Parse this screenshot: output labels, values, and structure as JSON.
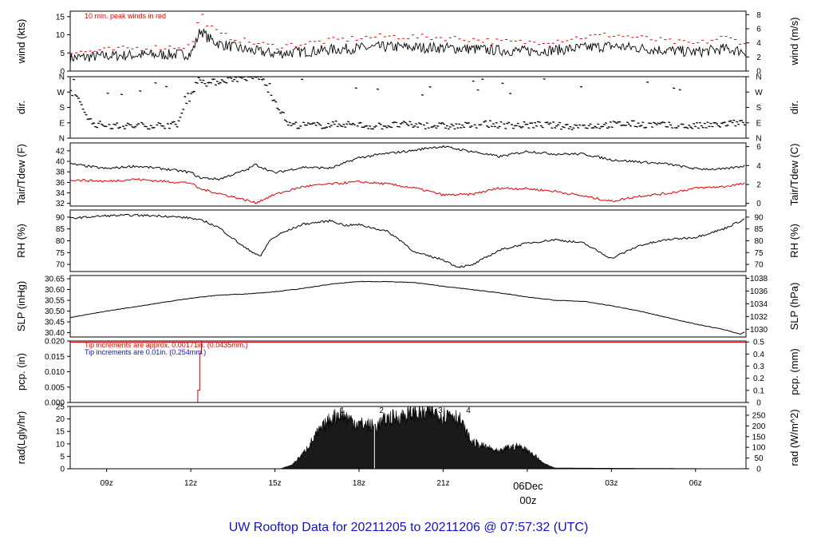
{
  "caption": "UW Rooftop Data for 20211205  to  20211206 @ 07:57:32  (UTC)",
  "colors": {
    "red": "#e00000",
    "blue": "#1010d0",
    "black": "#000000",
    "purple": "#7a1fa2"
  },
  "chart_data": [
    {
      "type": "line",
      "id": "wind",
      "ylabel_left": "wind (kts)",
      "ylabel_right": "wind (m/s)",
      "left_ticks": [
        "0",
        "5",
        "10",
        "15"
      ],
      "right_ticks": [
        "0",
        "2",
        "4",
        "6",
        "8"
      ],
      "ylim": [
        0,
        16.5
      ],
      "annotation": "10 min. peak winds in red",
      "x": [
        7.7,
        9,
        10,
        11,
        12,
        12.1,
        12.2,
        12.35,
        12.6,
        13,
        14,
        15,
        16,
        17,
        18,
        19,
        20,
        21,
        22,
        23,
        24,
        25,
        26,
        27,
        28,
        29,
        30,
        31,
        31.8
      ],
      "series": [
        {
          "values": [
            3.6,
            4.2,
            4.4,
            4.5,
            4.7,
            6.4,
            8.4,
            11.4,
            9.2,
            7.5,
            5.8,
            4.8,
            5.3,
            5.9,
            6.3,
            6.7,
            6.5,
            6.4,
            6.1,
            5.7,
            5.5,
            5.8,
            6.4,
            6.9,
            6.3,
            5.7,
            5.2,
            6.1,
            5.4
          ]
        },
        {
          "values": [
            5.0,
            5.8,
            6.3,
            6.5,
            6.9,
            8.7,
            11.6,
            16.0,
            13.0,
            10.2,
            8.1,
            6.8,
            7.5,
            8.4,
            9.1,
            9.6,
            9.4,
            9.2,
            8.8,
            8.1,
            7.9,
            8.4,
            9.4,
            10.0,
            9.2,
            8.2,
            7.4,
            9.3,
            7.8
          ]
        }
      ]
    },
    {
      "type": "scatter",
      "id": "dir",
      "ylabel_left": "dir.",
      "ylabel_right": "dir.",
      "left_ticks": [
        "N",
        "E",
        "S",
        "W",
        "N"
      ],
      "right_ticks": [
        "N",
        "E",
        "S",
        "W",
        "N"
      ],
      "ylim": [
        0,
        360
      ],
      "x": [
        7.8,
        8.5,
        9.5,
        10.5,
        11.5,
        12.3,
        12.6,
        13.0,
        13.5,
        14.0,
        14.5,
        15.5,
        16.5,
        17.5,
        18.5,
        19.5,
        20.5,
        21.5,
        22.5,
        23.5,
        24.5,
        25.5,
        26.5,
        27.5,
        28.5,
        29.5,
        30.5,
        31.5
      ],
      "values": [
        270,
        85,
        70,
        75,
        80,
        355,
        320,
        335,
        350,
        355,
        360,
        80,
        75,
        85,
        70,
        80,
        75,
        70,
        85,
        75,
        80,
        70,
        75,
        85,
        80,
        70,
        75,
        90
      ]
    },
    {
      "type": "line",
      "id": "temp",
      "ylabel_left": "Tair/Tdew (F)",
      "ylabel_right": "Tair/Tdew (C)",
      "left_ticks": [
        "32",
        "34",
        "36",
        "38",
        "40",
        "42"
      ],
      "right_ticks": [
        "0",
        "2",
        "4",
        "6"
      ],
      "ylim": [
        31.5,
        43.5
      ],
      "x": [
        7.7,
        9,
        10,
        11,
        12,
        12.3,
        13,
        14,
        14.3,
        15,
        16,
        17,
        18,
        19,
        20,
        20.5,
        21,
        22,
        23,
        24,
        25,
        26,
        27,
        28,
        29,
        30,
        31,
        31.8
      ],
      "series": [
        {
          "values": [
            39.5,
            38.6,
            39.1,
            38.6,
            37.9,
            36.9,
            36.6,
            38.4,
            39.4,
            37.8,
            38.9,
            38.7,
            40.7,
            41.5,
            42.1,
            42.6,
            42.8,
            41.9,
            40.9,
            41.9,
            41.4,
            41.4,
            40.3,
            39.9,
            39.5,
            38.6,
            38.5,
            39.2
          ]
        },
        {
          "values": [
            36.5,
            36.2,
            36.6,
            36.2,
            35.9,
            34.8,
            33.9,
            32.6,
            32.1,
            33.7,
            35.2,
            35.7,
            36.1,
            35.7,
            34.9,
            34.3,
            33.6,
            33.7,
            34.9,
            34.8,
            34.3,
            33.4,
            32.4,
            33.4,
            33.9,
            34.9,
            35.2,
            35.8
          ]
        }
      ]
    },
    {
      "type": "line",
      "id": "rh",
      "ylabel_left": "RH (%)",
      "ylabel_right": "RH (%)",
      "left_ticks": [
        "70",
        "75",
        "80",
        "85",
        "90"
      ],
      "right_ticks": [
        "70",
        "75",
        "80",
        "85",
        "90"
      ],
      "ylim": [
        67,
        93
      ],
      "x": [
        7.7,
        9,
        10,
        11,
        12,
        12.5,
        13,
        13.5,
        14,
        14.5,
        14.8,
        15.2,
        16,
        17,
        17.5,
        18,
        19,
        19.5,
        20,
        21,
        21.5,
        22,
        23,
        24,
        25,
        26,
        27,
        28,
        29,
        30,
        31,
        31.8
      ],
      "values": [
        89.5,
        90.6,
        90.8,
        90.5,
        89.6,
        88.2,
        85.6,
        81.0,
        76.5,
        73.5,
        80.0,
        83.0,
        87.0,
        88.5,
        86.5,
        86.8,
        84.0,
        80.0,
        75.0,
        72.0,
        69.0,
        69.5,
        76.0,
        79.0,
        80.5,
        79.0,
        72.5,
        78.0,
        80.5,
        81.5,
        85.0,
        89.5
      ]
    },
    {
      "type": "line",
      "id": "slp",
      "ylabel_left": "SLP (inHg)",
      "ylabel_right": "SLP (hPa)",
      "left_ticks": [
        "30.40",
        "30.45",
        "30.50",
        "30.55",
        "30.60",
        "30.65"
      ],
      "right_ticks": [
        "1030",
        "1032",
        "1034",
        "1036",
        "1038"
      ],
      "ylim": [
        30.38,
        30.665
      ],
      "x": [
        7.7,
        9,
        10,
        11,
        12,
        13,
        14,
        15,
        16,
        17,
        18,
        19,
        20,
        21,
        22,
        23,
        24,
        25,
        26,
        27,
        28,
        29,
        30,
        31,
        31.6,
        31.8
      ],
      "values": [
        30.47,
        30.5,
        30.52,
        30.54,
        30.56,
        30.574,
        30.58,
        30.59,
        30.605,
        30.625,
        30.637,
        30.637,
        30.632,
        30.615,
        30.6,
        30.585,
        30.565,
        30.55,
        30.545,
        30.525,
        30.5,
        30.47,
        30.44,
        30.415,
        30.393,
        30.405
      ]
    },
    {
      "type": "line",
      "id": "pcp",
      "ylabel_left": "pcp. (in)",
      "ylabel_right": "pcp. (mm)",
      "left_ticks": [
        "0.000",
        "0.005",
        "0.010",
        "0.015",
        "0.020"
      ],
      "right_ticks": [
        "0",
        "0.1",
        "0.2",
        "0.3",
        "0.4",
        "0.5"
      ],
      "ylim": [
        0,
        0.02
      ],
      "notes": [
        "Tip increments are approx. 0.00171in. (0.0435mm.)",
        "Tip increments are 0.01in. (0.254mm.)"
      ],
      "x": [
        7.7,
        12.25,
        12.25,
        12.32,
        12.32,
        12.38,
        12.38,
        31.8
      ],
      "values": [
        0,
        0,
        0.004,
        0.004,
        0.016,
        0.016,
        0.02,
        0.02
      ]
    },
    {
      "type": "area",
      "id": "rad",
      "ylabel_left": "rad(Lgly/hr)",
      "ylabel_right": "rad (W/m^2)",
      "left_ticks": [
        "0",
        "5",
        "10",
        "15",
        "20",
        "25"
      ],
      "right_ticks": [
        "0",
        "50",
        "100",
        "150",
        "200",
        "250"
      ],
      "ylim": [
        0,
        25
      ],
      "markers": [
        "1",
        "2",
        "3",
        "4"
      ],
      "marker_x": [
        17.4,
        18.8,
        20.9,
        21.9
      ],
      "x": [
        7.7,
        15.2,
        15.6,
        16.0,
        16.5,
        17.0,
        17.3,
        17.5,
        17.8,
        18.0,
        18.3,
        18.6,
        19.0,
        19.5,
        20.0,
        20.3,
        20.7,
        21.0,
        21.3,
        21.6,
        21.8,
        22.0,
        22.3,
        22.7,
        23.0,
        23.3,
        23.7,
        24.0,
        24.3,
        24.6,
        25.0,
        31.8
      ],
      "values": [
        0,
        0,
        1.5,
        6,
        14,
        20,
        22,
        21,
        19,
        18,
        17.5,
        17,
        20,
        21,
        22.5,
        22,
        22.8,
        21.5,
        22.5,
        19.5,
        15,
        11,
        9.5,
        8,
        6.5,
        8.5,
        9,
        7.5,
        5,
        2,
        0.3,
        0
      ]
    }
  ],
  "x_axis": {
    "range": [
      7.7,
      31.8
    ],
    "tick_x": [
      9,
      12,
      15,
      18,
      21,
      27,
      30
    ],
    "tick_labels": [
      "09z",
      "12z",
      "15z",
      "18z",
      "21z",
      "03z",
      "06z"
    ],
    "day_label_x": 24,
    "day_label": "06Dec",
    "day_sub": "00z"
  }
}
